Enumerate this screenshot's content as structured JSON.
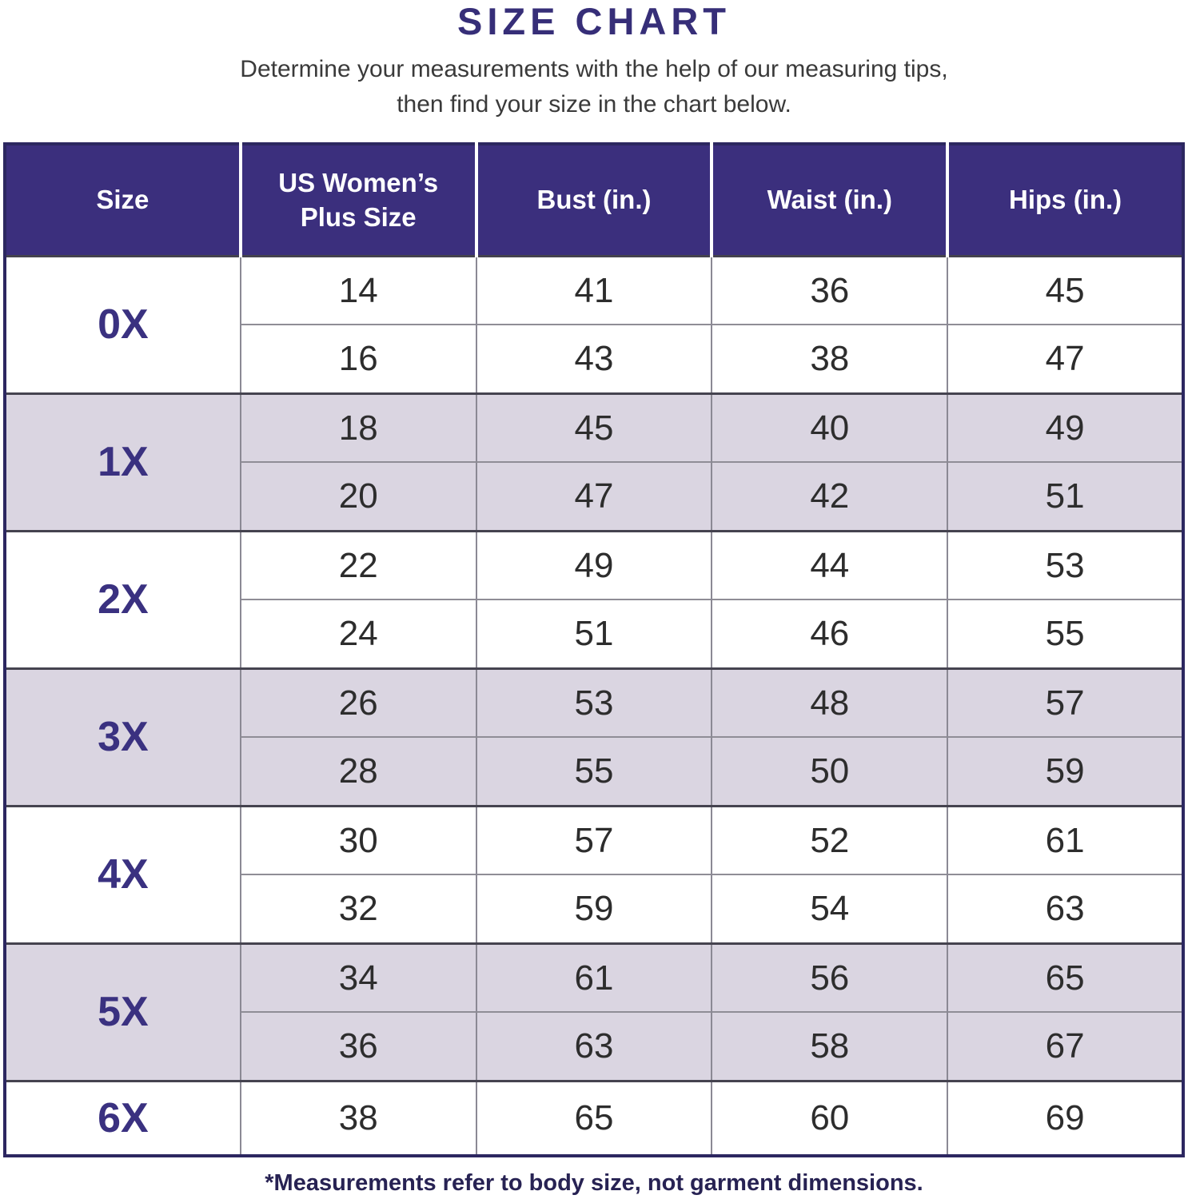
{
  "page": {
    "title": "SIZE CHART",
    "subtitle_line1": "Determine your measurements with the help of our measuring tips,",
    "subtitle_line2": "then find your size in the chart below.",
    "footnote": "*Measurements refer to body size, not garment dimensions."
  },
  "colors": {
    "header_bg": "#3b2f7d",
    "title_text": "#362e78",
    "size_label_text": "#3a3180",
    "shaded_row_bg": "#dad5e1",
    "body_text": "#2d2d2d",
    "footnote_text": "#272253",
    "outer_border": "#2c2760"
  },
  "chart_data": {
    "type": "table",
    "title": "SIZE CHART",
    "columns": [
      "Size",
      "US Women’s Plus Size",
      "Bust (in.)",
      "Waist (in.)",
      "Hips (in.)"
    ],
    "groups": [
      {
        "size": "0X",
        "shaded": false,
        "rows": [
          [
            "14",
            "41",
            "36",
            "45"
          ],
          [
            "16",
            "43",
            "38",
            "47"
          ]
        ]
      },
      {
        "size": "1X",
        "shaded": true,
        "rows": [
          [
            "18",
            "45",
            "40",
            "49"
          ],
          [
            "20",
            "47",
            "42",
            "51"
          ]
        ]
      },
      {
        "size": "2X",
        "shaded": false,
        "rows": [
          [
            "22",
            "49",
            "44",
            "53"
          ],
          [
            "24",
            "51",
            "46",
            "55"
          ]
        ]
      },
      {
        "size": "3X",
        "shaded": true,
        "rows": [
          [
            "26",
            "53",
            "48",
            "57"
          ],
          [
            "28",
            "55",
            "50",
            "59"
          ]
        ]
      },
      {
        "size": "4X",
        "shaded": false,
        "rows": [
          [
            "30",
            "57",
            "52",
            "61"
          ],
          [
            "32",
            "59",
            "54",
            "63"
          ]
        ]
      },
      {
        "size": "5X",
        "shaded": true,
        "rows": [
          [
            "34",
            "61",
            "56",
            "65"
          ],
          [
            "36",
            "63",
            "58",
            "67"
          ]
        ]
      },
      {
        "size": "6X",
        "shaded": false,
        "rows": [
          [
            "38",
            "65",
            "60",
            "69"
          ]
        ]
      }
    ],
    "footnote": "*Measurements refer to body size, not garment dimensions."
  }
}
